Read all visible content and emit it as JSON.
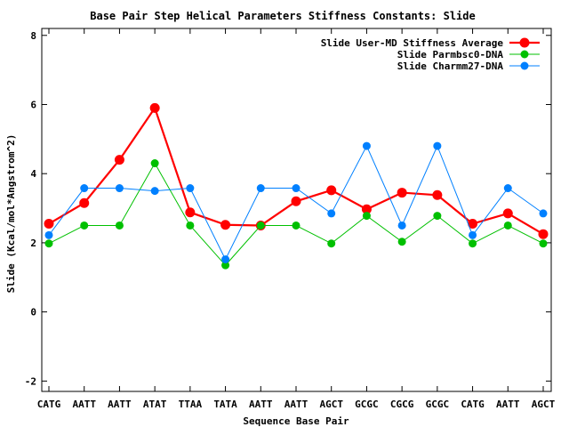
{
  "chart_data": {
    "type": "line",
    "title": "Base Pair Step Helical Parameters Stiffness Constants: Slide",
    "xlabel": "Sequence Base Pair",
    "ylabel": "Slide (Kcal/mol*Angstrom^2)",
    "ylim": [
      -2.3,
      8.2
    ],
    "yticks": [
      -2,
      0,
      2,
      4,
      6,
      8
    ],
    "grid": false,
    "legend_position": "top-right",
    "categories": [
      "CATG",
      "AATT",
      "AATT",
      "ATAT",
      "TTAA",
      "TATA",
      "AATT",
      "AATT",
      "AGCT",
      "GCGC",
      "CGCG",
      "GCGC",
      "CATG",
      "AATT",
      "AGCT"
    ],
    "series": [
      {
        "name": "Slide User-MD Stiffness Average",
        "color": "#ff0000",
        "values": [
          2.55,
          3.15,
          4.4,
          5.9,
          2.88,
          2.52,
          2.5,
          3.2,
          3.52,
          2.97,
          3.45,
          3.38,
          2.55,
          2.85,
          2.25
        ]
      },
      {
        "name": "Slide Parmbsc0-DNA",
        "color": "#00c000",
        "values": [
          1.98,
          2.5,
          2.5,
          4.3,
          2.5,
          1.35,
          2.5,
          2.5,
          1.98,
          2.78,
          2.03,
          2.78,
          1.98,
          2.5,
          1.98
        ]
      },
      {
        "name": "Slide Charmm27-DNA",
        "color": "#0080ff",
        "values": [
          2.22,
          3.58,
          3.58,
          3.5,
          3.58,
          1.52,
          3.58,
          3.58,
          2.85,
          4.8,
          2.5,
          4.8,
          2.22,
          3.58,
          2.85
        ]
      }
    ]
  }
}
